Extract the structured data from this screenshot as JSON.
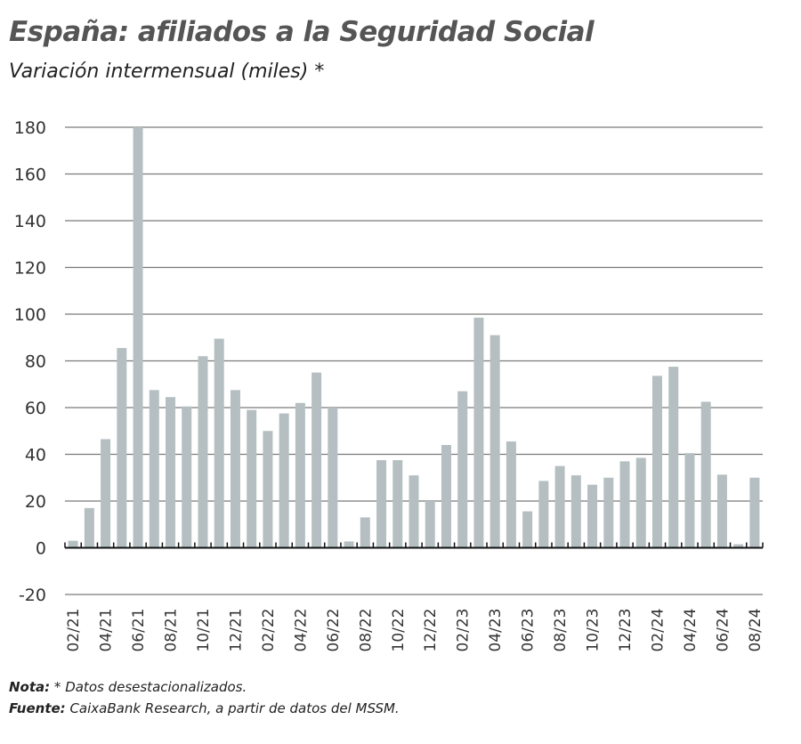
{
  "title": "España: afiliados a la Seguridad Social",
  "subtitle": "Variación intermensual (miles) *",
  "notes": {
    "nota_label": "Nota:",
    "nota_text": " * Datos desestacionalizados.",
    "fuente_label": "Fuente:",
    "fuente_text": " CaixaBank Research, a partir de datos del MSSM."
  },
  "chart_data": {
    "type": "bar",
    "title": "España: afiliados a la Seguridad Social",
    "subtitle": "Variación intermensual (miles) *",
    "xlabel": "",
    "ylabel": "",
    "ylim": [
      -20,
      180
    ],
    "yticks": [
      -20,
      0,
      20,
      40,
      60,
      80,
      100,
      120,
      140,
      160,
      180
    ],
    "grid": true,
    "bar_color": "#b5bfc2",
    "categories": [
      "02/21",
      "03/21",
      "04/21",
      "05/21",
      "06/21",
      "07/21",
      "08/21",
      "09/21",
      "10/21",
      "11/21",
      "12/21",
      "01/22",
      "02/22",
      "03/22",
      "04/22",
      "05/22",
      "06/22",
      "07/22",
      "08/22",
      "09/22",
      "10/22",
      "11/22",
      "12/22",
      "01/23",
      "02/23",
      "03/23",
      "04/23",
      "05/23",
      "06/23",
      "07/23",
      "08/23",
      "09/23",
      "10/23",
      "11/23",
      "12/23",
      "01/24",
      "02/24",
      "03/24",
      "04/24",
      "05/24",
      "06/24",
      "07/24",
      "08/24"
    ],
    "tick_labels": [
      "02/21",
      "04/21",
      "06/21",
      "08/21",
      "10/21",
      "12/21",
      "02/22",
      "04/22",
      "06/22",
      "08/22",
      "10/22",
      "12/22",
      "02/23",
      "04/23",
      "06/23",
      "08/23",
      "10/23",
      "12/23",
      "02/24",
      "04/24",
      "06/24",
      "08/24"
    ],
    "values": [
      3,
      17,
      46.5,
      85.5,
      180,
      67.5,
      64.5,
      60.5,
      82,
      89.5,
      67.5,
      59,
      50,
      57.5,
      62,
      75,
      60,
      2.7,
      13,
      37.5,
      37.5,
      31,
      20,
      44,
      67,
      98.5,
      91,
      45.5,
      15.6,
      28.6,
      35,
      31,
      27,
      30,
      37,
      38.5,
      73.6,
      77.5,
      40.5,
      62.5,
      31.3,
      1.5,
      30
    ]
  }
}
